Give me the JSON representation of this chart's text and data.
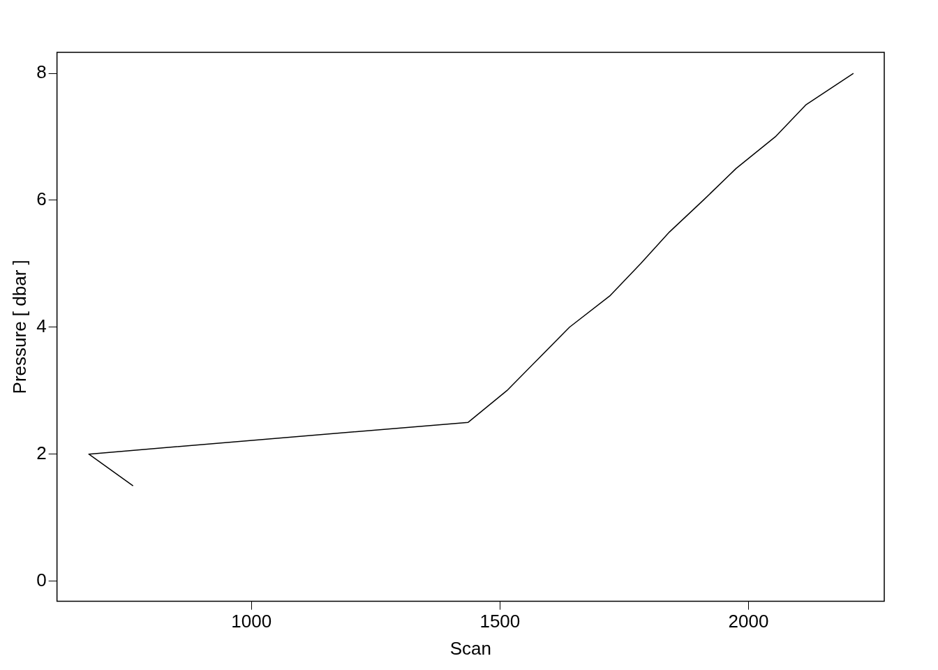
{
  "chart_data": {
    "type": "line",
    "xlabel": "Scan",
    "ylabel": "Pressure [ dbar ]",
    "series": [
      {
        "color": "#000000",
        "x": [
          762,
          673,
          1436,
          1514,
          1577,
          1640,
          1722,
          1783,
          1841,
          1909,
          1975,
          2054,
          2115,
          2211
        ],
        "values": [
          1.5,
          2,
          2.5,
          3,
          3.5,
          4,
          4.5,
          5,
          5.5,
          6,
          6.5,
          7,
          7.5,
          8
        ]
      }
    ],
    "xlim": [
      609,
      2273
    ],
    "xticks": [
      1000,
      1500,
      2000
    ],
    "ylim": [
      -0.32,
      8.33
    ],
    "yticks": [
      0,
      2,
      4,
      6,
      8
    ],
    "grid": false,
    "legend": false,
    "marker": "none",
    "line_style": "solid"
  }
}
